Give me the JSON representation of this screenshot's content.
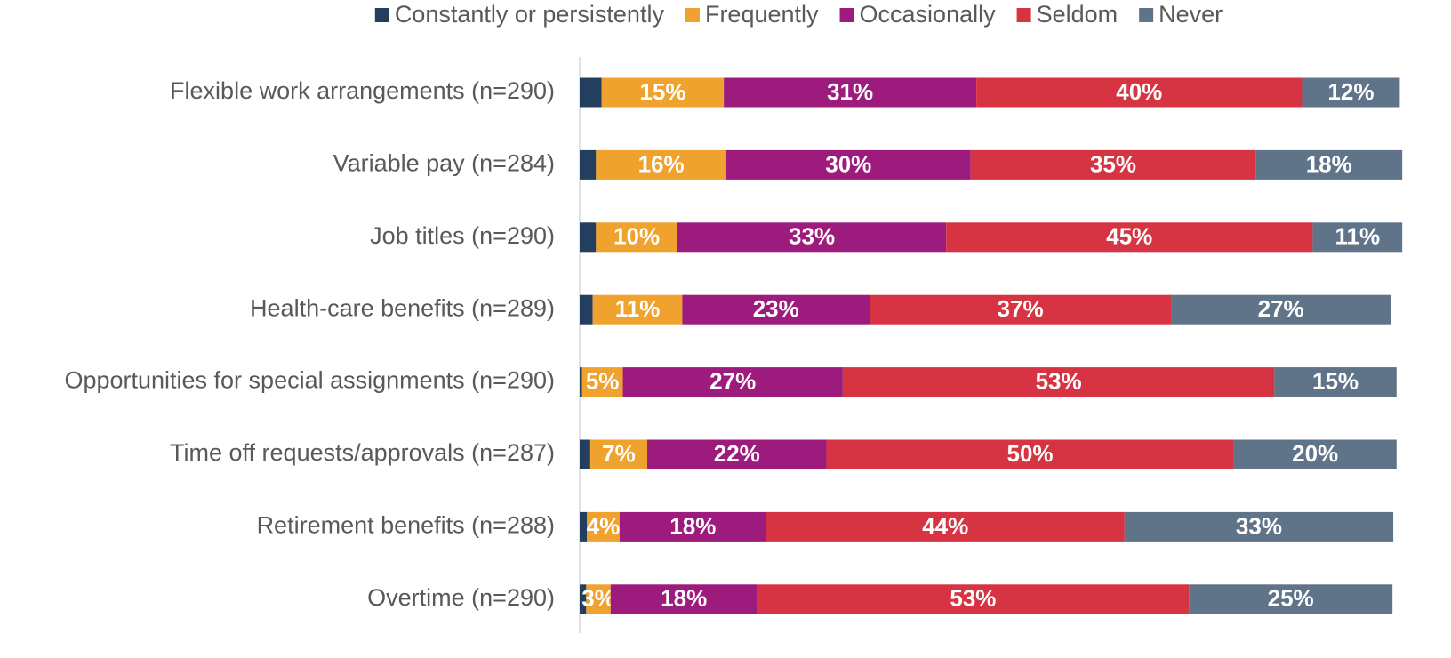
{
  "chart_data": {
    "type": "stacked_bar_horizontal",
    "categories": [
      "Flexible work arrangements (n=290)",
      "Variable pay (n=284)",
      "Job titles (n=290)",
      "Health-care benefits (n=289)",
      "Opportunities for special assignments (n=290)",
      "Time off requests/approvals (n=287)",
      "Retirement benefits (n=288)",
      "Overtime (n=290)"
    ],
    "series": [
      {
        "name": "Constantly or persistently",
        "color": "#243f5e",
        "values": [
          2.7,
          2,
          2,
          1.6,
          0.3,
          1.3,
          0.9,
          0.8
        ]
      },
      {
        "name": "Frequently",
        "color": "#f0a22e",
        "values": [
          15,
          16,
          10,
          11,
          5,
          7,
          4,
          3
        ],
        "value_labels": [
          "15%",
          "16%",
          "10%",
          "11%",
          "5%",
          "7%",
          "4%",
          "3%"
        ]
      },
      {
        "name": "Occasionally",
        "color": "#9c1b7c",
        "values": [
          31,
          30,
          33,
          23,
          27,
          22,
          18,
          18
        ],
        "value_labels": [
          "31%",
          "30%",
          "33%",
          "23%",
          "27%",
          "22%",
          "18%",
          "18%"
        ]
      },
      {
        "name": "Seldom",
        "color": "#d63442",
        "values": [
          40,
          35,
          45,
          37,
          53,
          50,
          44,
          53
        ],
        "value_labels": [
          "40%",
          "35%",
          "45%",
          "37%",
          "53%",
          "50%",
          "44%",
          "53%"
        ]
      },
      {
        "name": "Never",
        "color": "#5f7489",
        "values": [
          12,
          18,
          11,
          27,
          15,
          20,
          33,
          25
        ],
        "value_labels": [
          "12%",
          "18%",
          "11%",
          "27%",
          "15%",
          "20%",
          "33%",
          "25%"
        ]
      }
    ],
    "xlim": [
      0,
      100
    ],
    "legend": "top"
  }
}
